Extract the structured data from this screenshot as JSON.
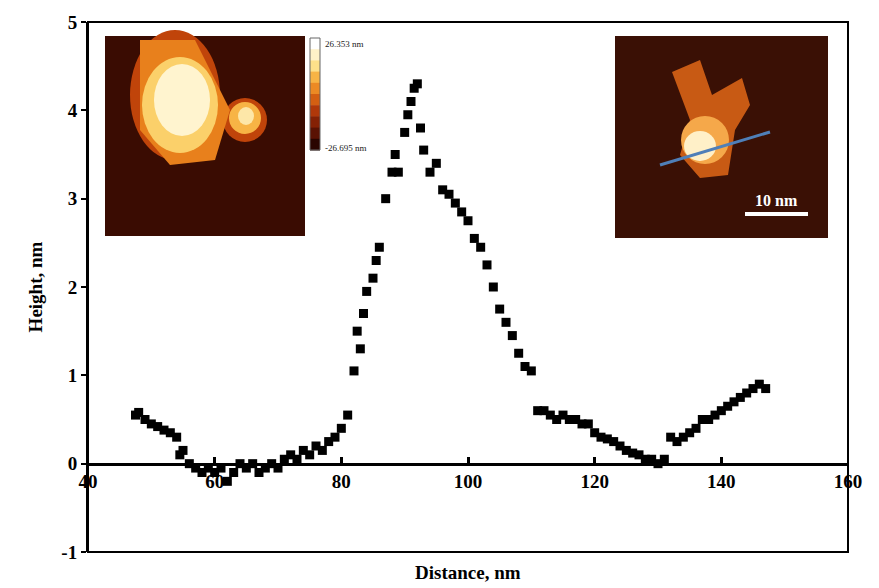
{
  "chart_data": {
    "type": "scatter",
    "x_label": "Distance, nm",
    "y_label": "Height, nm",
    "marker": "square",
    "color": "#000000",
    "grid": false,
    "xlim": [
      40,
      160
    ],
    "xticks": [
      40,
      60,
      80,
      100,
      120,
      140,
      160
    ],
    "ylim": [
      -1,
      5
    ],
    "yticks": [
      -1,
      0,
      1,
      2,
      3,
      4,
      5
    ],
    "annotations": [
      "26.353 nm",
      "-26.695 nm",
      "10 nm"
    ],
    "x": [
      47.5,
      48,
      49,
      50,
      51,
      52,
      53,
      54,
      54.5,
      55,
      56,
      57,
      58,
      59,
      60,
      61,
      62,
      63,
      64,
      65,
      66,
      67,
      68,
      69,
      70,
      71,
      72,
      73,
      74,
      75,
      76,
      77,
      78,
      79,
      80,
      81,
      82,
      82.5,
      83,
      83.5,
      84,
      85,
      85.5,
      86,
      87,
      88,
      88.5,
      89,
      90,
      90.5,
      91,
      91.5,
      92,
      92.5,
      93,
      94,
      95,
      96,
      97,
      98,
      99,
      100,
      101,
      102,
      103,
      104,
      105,
      106,
      107,
      108,
      109,
      110,
      111,
      112,
      113,
      114,
      115,
      116,
      117,
      118,
      119,
      120,
      121,
      122,
      123,
      124,
      125,
      126,
      127,
      128,
      129,
      130,
      131,
      132,
      133,
      134,
      135,
      136,
      137,
      138,
      139,
      140,
      141,
      142,
      143,
      144,
      145,
      146,
      147
    ],
    "values": [
      0.55,
      0.58,
      0.5,
      0.45,
      0.42,
      0.38,
      0.35,
      0.3,
      0.1,
      0.15,
      0.0,
      -0.05,
      -0.1,
      -0.05,
      -0.1,
      -0.05,
      -0.2,
      -0.1,
      0.0,
      -0.05,
      0.0,
      -0.1,
      -0.05,
      0.0,
      -0.05,
      0.05,
      0.1,
      0.05,
      0.15,
      0.1,
      0.2,
      0.15,
      0.25,
      0.3,
      0.4,
      0.55,
      1.05,
      1.5,
      1.3,
      1.7,
      1.95,
      2.1,
      2.3,
      2.45,
      3.0,
      3.3,
      3.5,
      3.3,
      3.75,
      3.95,
      4.1,
      4.25,
      4.3,
      3.8,
      3.55,
      3.3,
      3.4,
      3.1,
      3.05,
      2.95,
      2.85,
      2.75,
      2.55,
      2.45,
      2.25,
      2.0,
      1.75,
      1.6,
      1.45,
      1.25,
      1.1,
      1.05,
      0.6,
      0.6,
      0.55,
      0.5,
      0.55,
      0.5,
      0.5,
      0.45,
      0.45,
      0.35,
      0.3,
      0.28,
      0.25,
      0.2,
      0.15,
      0.12,
      0.1,
      0.05,
      0.05,
      0.0,
      0.05,
      0.3,
      0.25,
      0.3,
      0.35,
      0.4,
      0.5,
      0.5,
      0.55,
      0.6,
      0.65,
      0.7,
      0.75,
      0.8,
      0.85,
      0.9,
      0.85
    ]
  }
}
